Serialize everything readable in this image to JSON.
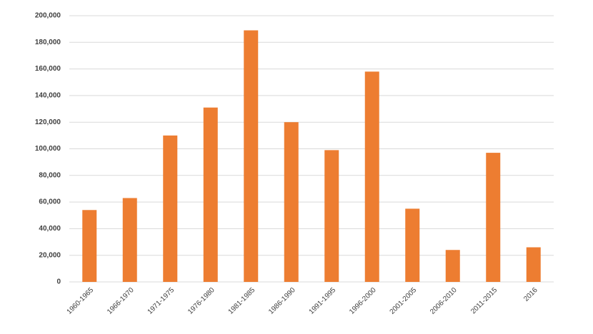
{
  "chart_data": {
    "type": "bar",
    "categories": [
      "1960-1965",
      "1966-1970",
      "1971-1975",
      "1976-1980",
      "1981-1985",
      "1986-1990",
      "1991-1995",
      "1996-2000",
      "2001-2005",
      "2006-2010",
      "2011-2015",
      "2016"
    ],
    "values": [
      54000,
      63000,
      110000,
      131000,
      189000,
      120000,
      99000,
      158000,
      55000,
      24000,
      97000,
      26000
    ],
    "color": "#ed7d31",
    "ylim": [
      0,
      200000
    ],
    "yticks": [
      0,
      {
        "value": 20000,
        "label": "20,000"
      },
      {
        "value": 40000,
        "label": "40,000"
      },
      {
        "value": 60000,
        "label": "60,000"
      },
      {
        "value": 80000,
        "label": "80,000"
      },
      {
        "value": 100000,
        "label": "100,000"
      },
      {
        "value": 120000,
        "label": "120,000"
      },
      {
        "value": 140000,
        "label": "140,000"
      },
      {
        "value": 160000,
        "label": "160,000"
      },
      {
        "value": 180000,
        "label": "180,000"
      },
      {
        "value": 200000,
        "label": "200,000"
      }
    ],
    "grid": true
  }
}
